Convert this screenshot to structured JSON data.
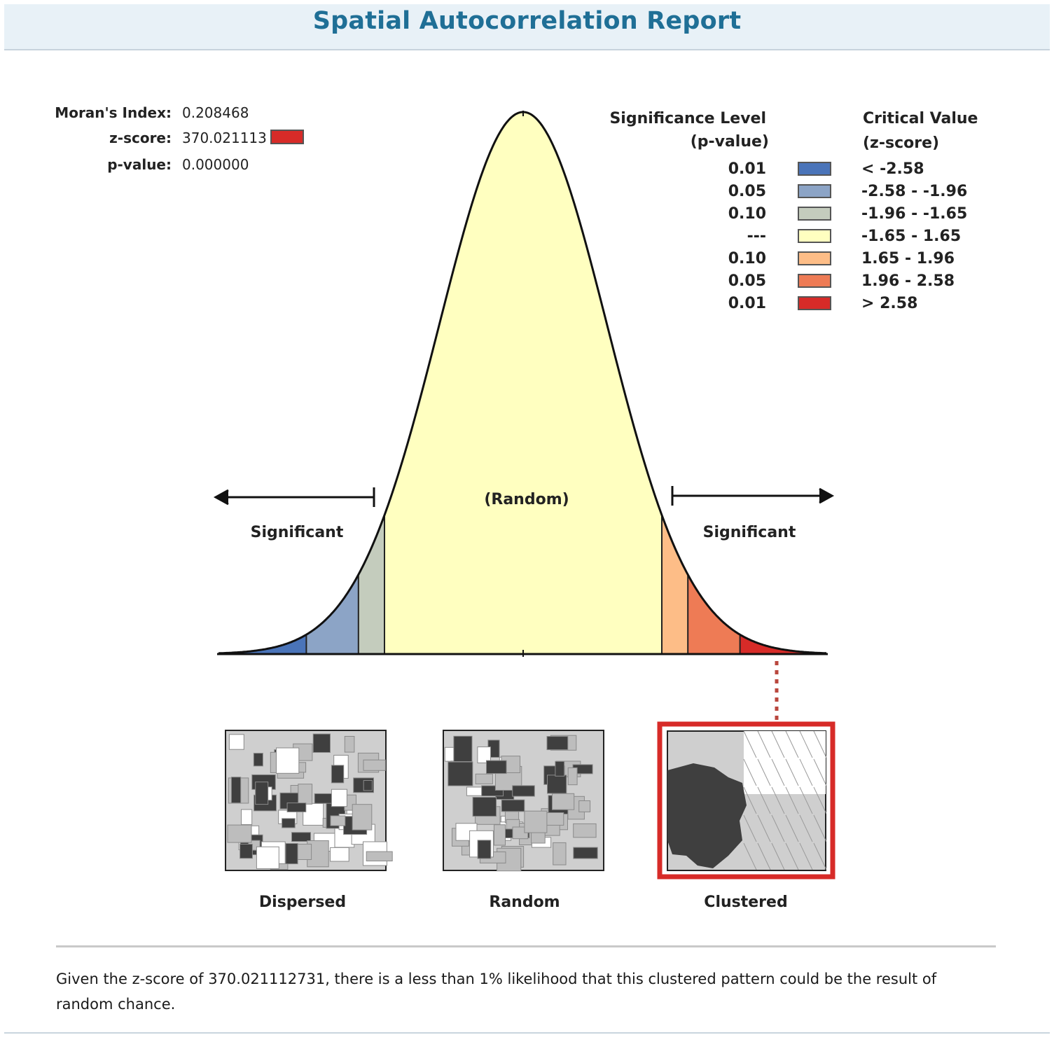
{
  "report": {
    "title": "Spatial Autocorrelation Report"
  },
  "stats": {
    "morans_index_label": "Moran's Index:",
    "morans_index_value": "0.208468",
    "z_score_label": "z-score:",
    "z_score_value": "370.021113",
    "p_value_label": "p-value:",
    "p_value_value": "0.000000",
    "z_score_swatch_color": "#d72b28"
  },
  "legend": {
    "significance_header_line1": "Significance Level",
    "significance_header_line2": "(p-value)",
    "critical_header_line1": "Critical Value",
    "critical_header_line2": "(z-score)",
    "rows": [
      {
        "p": "0.01",
        "color": "#4a74b9",
        "z": "< -2.58"
      },
      {
        "p": "0.05",
        "color": "#8ca4c6",
        "z": "-2.58 - -1.96"
      },
      {
        "p": "0.10",
        "color": "#c4ccbd",
        "z": "-1.96 - -1.65"
      },
      {
        "p": "---",
        "color": "#ffffc0",
        "z": "-1.65 - 1.65"
      },
      {
        "p": "0.10",
        "color": "#fdbd87",
        "z": "1.65 - 1.96"
      },
      {
        "p": "0.05",
        "color": "#ee7b55",
        "z": "1.96 - 2.58"
      },
      {
        "p": "0.01",
        "color": "#d72b28",
        "z": "> 2.58"
      }
    ]
  },
  "curve": {
    "random_label": "(Random)",
    "left_significant_label": "Significant",
    "right_significant_label": "Significant"
  },
  "patterns": {
    "dispersed": "Dispersed",
    "random": "Random",
    "clustered": "Clustered",
    "highlighted": "Clustered",
    "highlight_color": "#d72b28"
  },
  "summary": {
    "text": "Given the z-score of 370.021112731, there is a less than 1% likelihood that this clustered pattern could be the result of random chance."
  }
}
